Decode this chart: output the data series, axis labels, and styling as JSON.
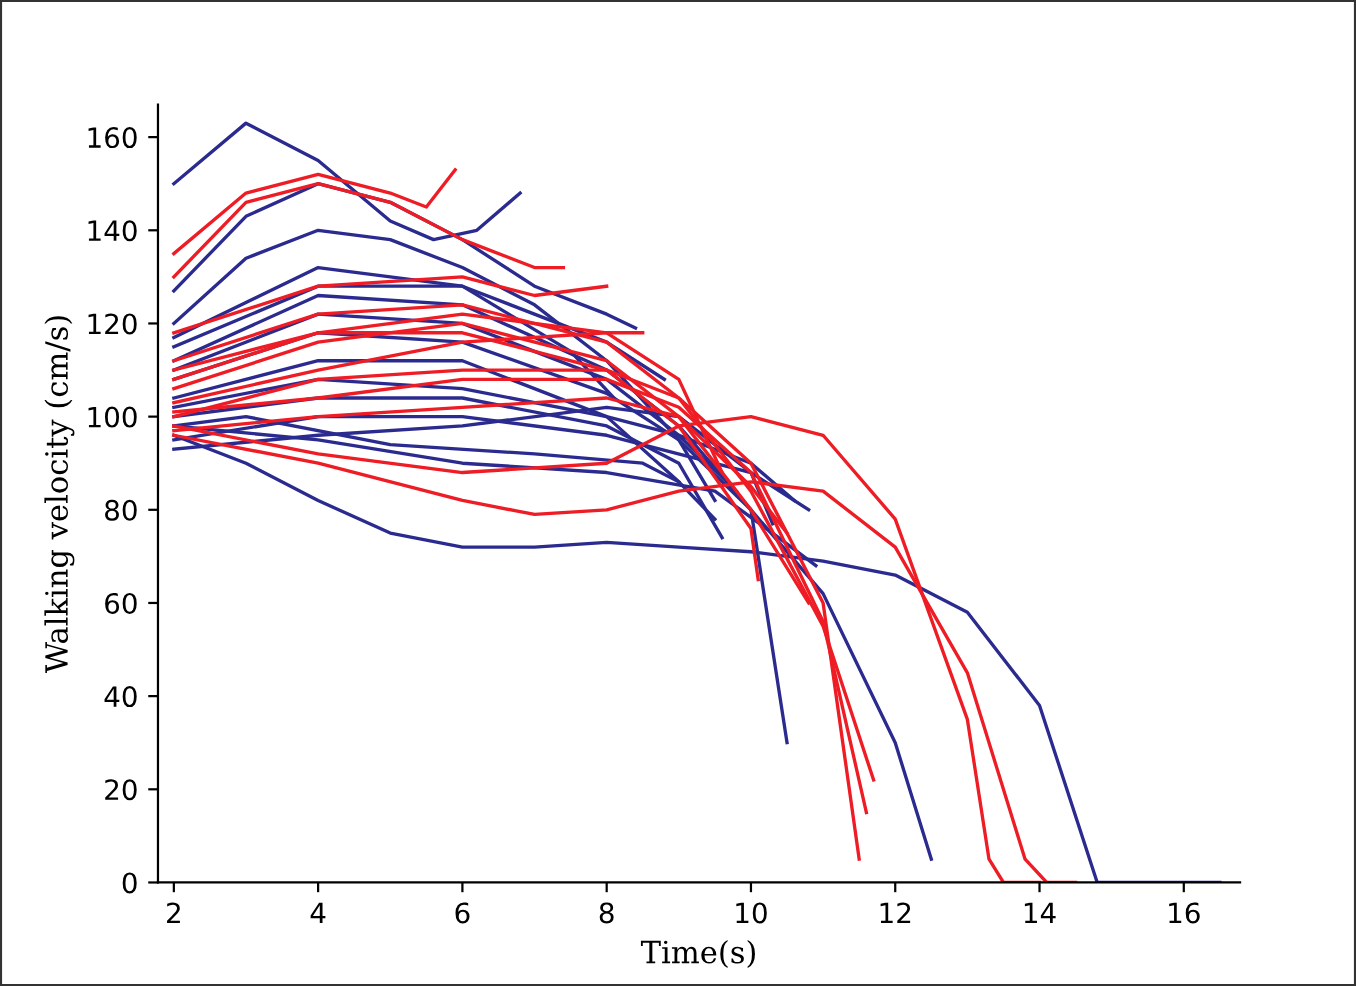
{
  "chart_data": {
    "type": "line",
    "xlabel": "Time(s)",
    "ylabel": "Walking velocity (cm/s)",
    "xlim": [
      1.78,
      16.78
    ],
    "ylim": [
      0,
      167
    ],
    "xticks": [
      2,
      4,
      6,
      8,
      10,
      12,
      14,
      16
    ],
    "yticks": [
      0,
      20,
      40,
      60,
      80,
      100,
      120,
      140,
      160
    ],
    "marker": "none",
    "line_style": "solid",
    "series": [
      {
        "color": "#2b2b8f",
        "x": [
          2,
          3,
          4,
          5,
          5.6,
          6.2,
          6.8
        ],
        "values": [
          150,
          163,
          155,
          142,
          138,
          140,
          148
        ]
      },
      {
        "color": "#2b2b8f",
        "x": [
          2,
          3,
          4,
          5,
          6,
          7,
          8,
          8.4
        ],
        "values": [
          127,
          143,
          150,
          146,
          138,
          128,
          122,
          119
        ]
      },
      {
        "color": "#2b2b8f",
        "x": [
          2,
          3,
          4,
          5,
          6,
          7,
          8,
          9,
          9.5
        ],
        "values": [
          120,
          134,
          140,
          138,
          132,
          124,
          112,
          95,
          82
        ]
      },
      {
        "color": "#2b2b8f",
        "x": [
          2,
          4,
          6,
          8,
          9,
          10,
          10.5
        ],
        "values": [
          112,
          126,
          124,
          110,
          98,
          80,
          30
        ]
      },
      {
        "color": "#2b2b8f",
        "x": [
          2,
          4,
          6,
          8,
          9,
          10,
          11,
          12,
          12.5
        ],
        "values": [
          108,
          118,
          116,
          105,
          95,
          80,
          62,
          30,
          5
        ]
      },
      {
        "color": "#2b2b8f",
        "x": [
          2,
          3,
          4,
          5,
          6,
          7,
          8,
          9,
          10,
          11,
          12,
          13,
          14,
          14.8,
          16.5
        ],
        "values": [
          96,
          90,
          82,
          75,
          72,
          72,
          73,
          72,
          71,
          69,
          66,
          58,
          38,
          0,
          0
        ]
      },
      {
        "color": "#2b2b8f",
        "x": [
          2,
          4,
          6,
          8,
          9.5,
          10.3,
          10.9
        ],
        "values": [
          98,
          95,
          90,
          88,
          84,
          75,
          68
        ]
      },
      {
        "color": "#2b2b8f",
        "x": [
          2,
          4,
          6,
          8,
          9,
          9.6
        ],
        "values": [
          100,
          104,
          104,
          98,
          90,
          74
        ]
      },
      {
        "color": "#2b2b8f",
        "x": [
          2,
          4,
          6,
          8,
          9,
          9.5
        ],
        "values": [
          104,
          112,
          112,
          100,
          86,
          78
        ]
      },
      {
        "color": "#2b2b8f",
        "x": [
          2,
          4,
          6,
          8,
          9,
          9.8
        ],
        "values": [
          110,
          122,
          120,
          108,
          96,
          84
        ]
      },
      {
        "color": "#2b2b8f",
        "x": [
          2,
          4,
          6,
          8,
          8.8
        ],
        "values": [
          115,
          128,
          128,
          116,
          108
        ]
      },
      {
        "color": "#2b2b8f",
        "x": [
          2,
          4,
          6,
          8,
          10,
          10.3
        ],
        "values": [
          95,
          100,
          100,
          96,
          88,
          77
        ]
      },
      {
        "color": "#2b2b8f",
        "x": [
          2,
          4,
          6,
          8,
          9,
          10,
          10.6
        ],
        "values": [
          102,
          108,
          106,
          100,
          96,
          90,
          82
        ]
      },
      {
        "color": "#2b2b8f",
        "x": [
          2,
          4,
          6,
          7.5,
          8.1
        ],
        "values": [
          117,
          132,
          128,
          114,
          104
        ]
      },
      {
        "color": "#2b2b8f",
        "x": [
          2,
          3,
          5,
          7,
          8.5,
          9
        ],
        "values": [
          98,
          100,
          94,
          92,
          90,
          86
        ]
      },
      {
        "color": "#2b2b8f",
        "x": [
          2,
          4,
          6,
          8,
          9,
          10,
          10.8
        ],
        "values": [
          93,
          96,
          98,
          102,
          100,
          88,
          80
        ]
      },
      {
        "color": "#ee1c24",
        "x": [
          2,
          3,
          4,
          5,
          5.5,
          5.9
        ],
        "values": [
          135,
          148,
          152,
          148,
          145,
          153
        ]
      },
      {
        "color": "#ee1c24",
        "x": [
          2,
          3,
          4,
          5,
          6,
          7,
          7.4
        ],
        "values": [
          130,
          146,
          150,
          146,
          138,
          132,
          132
        ]
      },
      {
        "color": "#ee1c24",
        "x": [
          2,
          4,
          6,
          7,
          8
        ],
        "values": [
          118,
          128,
          130,
          126,
          128
        ]
      },
      {
        "color": "#ee1c24",
        "x": [
          2,
          4,
          6,
          8,
          9,
          10,
          11,
          11.5
        ],
        "values": [
          100,
          108,
          110,
          110,
          104,
          90,
          60,
          5
        ]
      },
      {
        "color": "#ee1c24",
        "x": [
          2,
          4,
          6,
          8,
          9,
          10,
          11,
          11.6
        ],
        "values": [
          101,
          104,
          108,
          108,
          102,
          88,
          56,
          15
        ]
      },
      {
        "color": "#ee1c24",
        "x": [
          2,
          4,
          6,
          8,
          9,
          10,
          11,
          12,
          13,
          13.3,
          13.5,
          14
        ],
        "values": [
          98,
          92,
          88,
          90,
          98,
          100,
          96,
          78,
          35,
          5,
          0,
          0
        ]
      },
      {
        "color": "#ee1c24",
        "x": [
          2,
          4,
          6,
          7,
          8,
          9,
          10,
          11,
          12,
          13,
          13.8,
          14.1,
          14.5
        ],
        "values": [
          96,
          90,
          82,
          79,
          80,
          84,
          86,
          84,
          72,
          45,
          5,
          0,
          0
        ]
      },
      {
        "color": "#ee1c24",
        "x": [
          2,
          4,
          6,
          8,
          9,
          10,
          11,
          11.7
        ],
        "values": [
          112,
          122,
          124,
          116,
          104,
          84,
          55,
          22
        ]
      },
      {
        "color": "#ee1c24",
        "x": [
          2,
          4,
          6,
          8,
          9,
          10,
          10.8
        ],
        "values": [
          106,
          116,
          120,
          112,
          100,
          80,
          60
        ]
      },
      {
        "color": "#ee1c24",
        "x": [
          2,
          4,
          6,
          8,
          9,
          9.6
        ],
        "values": [
          108,
          118,
          122,
          118,
          108,
          88
        ]
      },
      {
        "color": "#ee1c24",
        "x": [
          2,
          4,
          6,
          8,
          8.5
        ],
        "values": [
          103,
          110,
          116,
          118,
          118
        ]
      },
      {
        "color": "#ee1c24",
        "x": [
          2,
          4,
          6,
          8,
          9,
          10,
          10.1
        ],
        "values": [
          110,
          118,
          118,
          110,
          98,
          76,
          65
        ]
      },
      {
        "color": "#ee1c24",
        "x": [
          2,
          4,
          6,
          8,
          9,
          10,
          10.5
        ],
        "values": [
          97,
          100,
          102,
          104,
          100,
          85,
          75
        ]
      }
    ]
  }
}
